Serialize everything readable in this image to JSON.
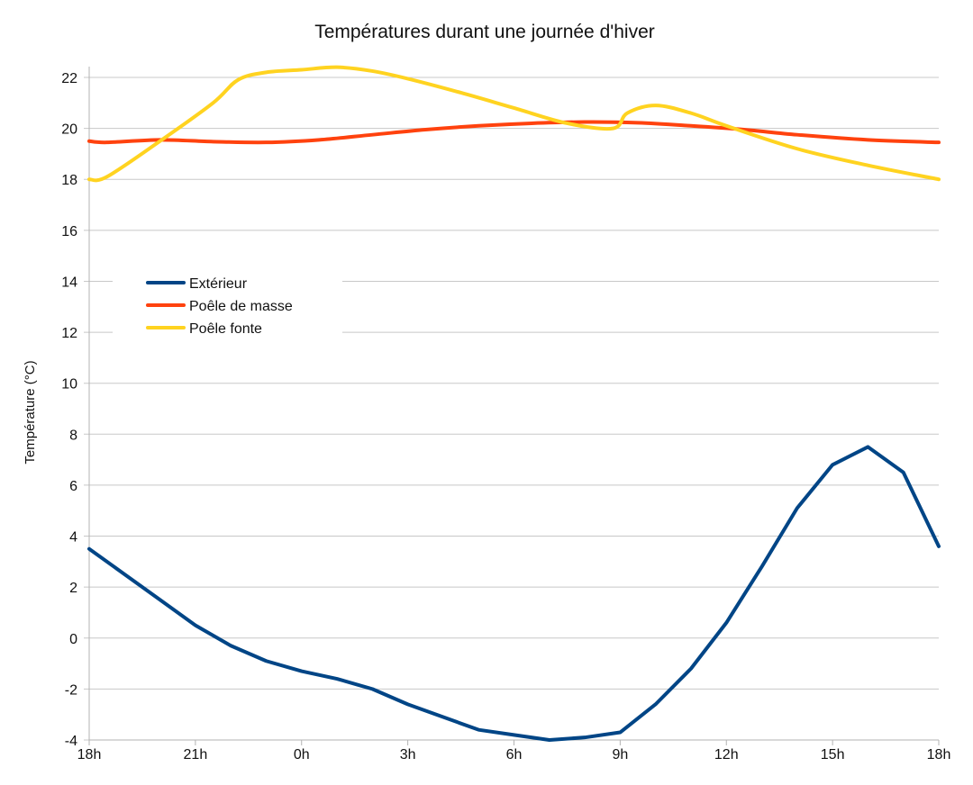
{
  "chart_data": {
    "type": "line",
    "title": "Températures durant une journée d'hiver",
    "xlabel": "",
    "ylabel": "Température (°C)",
    "ylim": [
      -4,
      22
    ],
    "yticks": [
      -4,
      -2,
      0,
      2,
      4,
      6,
      8,
      10,
      12,
      14,
      16,
      18,
      20,
      22
    ],
    "xlim": [
      0,
      24
    ],
    "x_tick_positions": [
      0,
      3,
      6,
      9,
      12,
      15,
      18,
      21,
      24
    ],
    "x_tick_labels": [
      "18h",
      "21h",
      "0h",
      "3h",
      "6h",
      "9h",
      "12h",
      "15h",
      "18h"
    ],
    "grid": true,
    "legend_position": "center-left",
    "series": [
      {
        "name": "Extérieur",
        "color": "#004586",
        "smooth": false,
        "x": [
          0,
          1,
          2,
          3,
          4,
          5,
          6,
          7,
          8,
          9,
          10,
          11,
          12,
          13,
          14,
          15,
          16,
          17,
          18,
          19,
          20,
          21,
          22,
          23,
          24
        ],
        "y": [
          3.5,
          2.5,
          1.5,
          0.5,
          -0.3,
          -0.9,
          -1.3,
          -1.6,
          -2.0,
          -2.6,
          -3.1,
          -3.6,
          -3.8,
          -4.0,
          -3.9,
          -3.7,
          -2.6,
          -1.2,
          0.6,
          2.8,
          5.1,
          6.8,
          7.5,
          6.5,
          3.6
        ]
      },
      {
        "name": "Poêle de masse",
        "color": "#ff420e",
        "smooth": true,
        "x": [
          0,
          0.5,
          2,
          3.5,
          5,
          6.5,
          8,
          9.5,
          11,
          12.5,
          14,
          15.5,
          17,
          18.5,
          20,
          22,
          24
        ],
        "y": [
          19.5,
          19.45,
          19.55,
          19.48,
          19.45,
          19.55,
          19.75,
          19.95,
          20.1,
          20.2,
          20.25,
          20.22,
          20.1,
          19.95,
          19.75,
          19.55,
          19.45
        ]
      },
      {
        "name": "Poêle fonte",
        "color": "#ffd320",
        "smooth": true,
        "x": [
          0,
          0.5,
          2,
          3.5,
          4.2,
          5,
          6,
          7,
          8,
          9,
          10.5,
          12,
          13.5,
          14.8,
          15.2,
          16,
          17,
          18,
          20,
          22,
          24
        ],
        "y": [
          18.0,
          18.1,
          19.5,
          21.0,
          21.9,
          22.2,
          22.3,
          22.4,
          22.25,
          21.95,
          21.4,
          20.8,
          20.2,
          20.0,
          20.6,
          20.9,
          20.6,
          20.1,
          19.2,
          18.55,
          18.0
        ]
      }
    ]
  }
}
